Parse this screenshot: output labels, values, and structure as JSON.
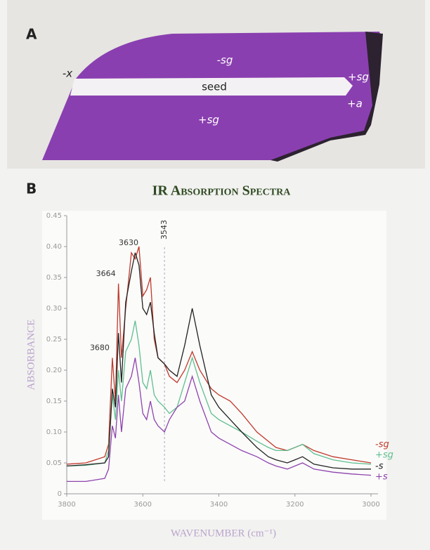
{
  "panel_a": {
    "label": "A",
    "labels": [
      "-sg",
      "-x",
      "seed",
      "+sg",
      "+a",
      "+sg"
    ]
  },
  "chart_data": {
    "type": "line",
    "panel_label": "B",
    "title": "IR Absorption Spectra",
    "x_label": "WAVENUMBER (cm⁻¹)",
    "y_label": "ABSORBANCE",
    "x": [
      3800,
      3750,
      3700,
      3690,
      3680,
      3672,
      3664,
      3656,
      3645,
      3630,
      3620,
      3610,
      3600,
      3590,
      3580,
      3570,
      3560,
      3543,
      3530,
      3510,
      3490,
      3470,
      3450,
      3420,
      3400,
      3370,
      3340,
      3300,
      3270,
      3250,
      3220,
      3200,
      3180,
      3150,
      3100,
      3050,
      3000
    ],
    "series": [
      {
        "name": "-sg",
        "color": "#c0392b",
        "values": [
          0.048,
          0.05,
          0.06,
          0.08,
          0.22,
          0.15,
          0.34,
          0.22,
          0.3,
          0.39,
          0.38,
          0.4,
          0.32,
          0.33,
          0.35,
          0.25,
          0.22,
          0.21,
          0.19,
          0.18,
          0.2,
          0.23,
          0.2,
          0.17,
          0.16,
          0.15,
          0.13,
          0.1,
          0.085,
          0.075,
          0.07,
          0.075,
          0.08,
          0.07,
          0.06,
          0.055,
          0.05
        ]
      },
      {
        "name": "+sg",
        "color": "#5fbf8f",
        "values": [
          0.045,
          0.046,
          0.05,
          0.07,
          0.16,
          0.12,
          0.2,
          0.15,
          0.23,
          0.25,
          0.28,
          0.24,
          0.18,
          0.17,
          0.2,
          0.16,
          0.15,
          0.14,
          0.13,
          0.14,
          0.18,
          0.22,
          0.18,
          0.13,
          0.12,
          0.11,
          0.1,
          0.085,
          0.075,
          0.07,
          0.07,
          0.075,
          0.08,
          0.065,
          0.055,
          0.05,
          0.048
        ]
      },
      {
        "name": "-s",
        "color": "#222222",
        "values": [
          0.045,
          0.047,
          0.05,
          0.06,
          0.17,
          0.14,
          0.26,
          0.18,
          0.31,
          0.36,
          0.39,
          0.37,
          0.3,
          0.29,
          0.31,
          0.26,
          0.22,
          0.21,
          0.2,
          0.19,
          0.24,
          0.3,
          0.24,
          0.16,
          0.14,
          0.12,
          0.1,
          0.075,
          0.06,
          0.055,
          0.05,
          0.055,
          0.06,
          0.048,
          0.042,
          0.04,
          0.04
        ]
      },
      {
        "name": "+s",
        "color": "#8e44ad",
        "values": [
          0.02,
          0.02,
          0.025,
          0.04,
          0.11,
          0.09,
          0.16,
          0.1,
          0.17,
          0.19,
          0.22,
          0.18,
          0.13,
          0.12,
          0.15,
          0.12,
          0.11,
          0.1,
          0.12,
          0.14,
          0.15,
          0.19,
          0.15,
          0.1,
          0.09,
          0.08,
          0.07,
          0.06,
          0.05,
          0.045,
          0.04,
          0.045,
          0.05,
          0.04,
          0.035,
          0.032,
          0.03
        ]
      }
    ],
    "peak_labels": [
      3680,
      3664,
      3630
    ],
    "vlines": [
      3543
    ],
    "xlim": [
      3800,
      3000
    ],
    "xticks": [
      3800,
      3600,
      3400,
      3200,
      3000
    ],
    "ylim": [
      0,
      0.45
    ],
    "yticks": [
      0,
      0.05,
      {
        "value": 0.1,
        "label": "0.10"
      },
      0.15,
      {
        "value": 0.2,
        "label": "0.20"
      },
      0.25,
      {
        "value": 0.3,
        "label": "0.30"
      },
      0.35,
      {
        "value": 0.4,
        "label": "0.40"
      },
      0.45
    ]
  }
}
